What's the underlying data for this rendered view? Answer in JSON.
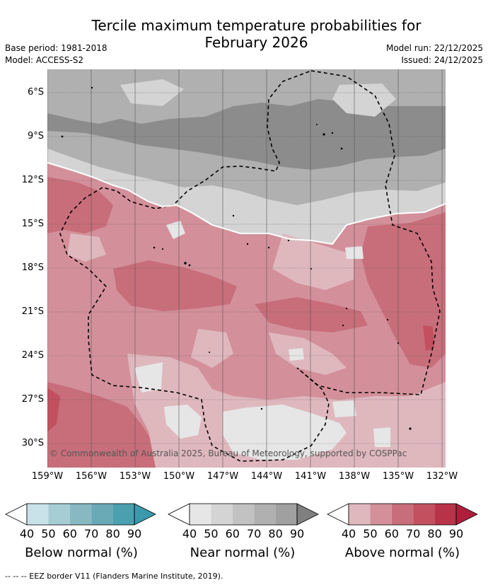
{
  "title": {
    "line1": "Tercile maximum temperature probabilities for",
    "line2": "February 2026"
  },
  "meta_left": {
    "base_period": "Base period: 1981-2018",
    "model": "Model: ACCESS-S2"
  },
  "meta_right": {
    "model_run": "Model run: 22/12/2025",
    "issued": "Issued: 24/12/2025"
  },
  "map": {
    "lat_labels": [
      "6°S",
      "9°S",
      "12°S",
      "15°S",
      "18°S",
      "21°S",
      "24°S",
      "27°S",
      "30°S"
    ],
    "lon_labels": [
      "159°W",
      "156°W",
      "153°W",
      "150°W",
      "147°W",
      "144°W",
      "141°W",
      "138°W",
      "135°W",
      "132°W"
    ],
    "copyright": "© Commonwealth of Australia 2025, Bureau of Meteorology, supported by COSPPac",
    "colors": {
      "near_50": "#d4d4d4",
      "near_60": "#b0b0b0",
      "near_70": "#8c8c8c",
      "near_40": "#e6e6e6",
      "above_40": "#dfb8be",
      "above_50": "#d3909a",
      "above_60": "#c76e7a",
      "above_70": "#c2505f"
    }
  },
  "legend": {
    "below": {
      "caption": "Below normal (%)",
      "ticks": [
        "40",
        "50",
        "60",
        "70",
        "80",
        "90"
      ],
      "colors": [
        "#c9e2e8",
        "#a7cdd4",
        "#88b9c2",
        "#6aaab6",
        "#4ba0b0"
      ]
    },
    "near": {
      "caption": "Near normal (%)",
      "ticks": [
        "40",
        "50",
        "60",
        "70",
        "80",
        "90"
      ],
      "colors": [
        "#e6e6e6",
        "#d4d4d4",
        "#c2c2c2",
        "#b0b0b0",
        "#a0a0a0"
      ]
    },
    "above": {
      "caption": "Above normal (%)",
      "ticks": [
        "40",
        "50",
        "60",
        "70",
        "80",
        "90"
      ],
      "colors": [
        "#dfb8be",
        "#d3909a",
        "#c76e7a",
        "#c2505f",
        "#b83348"
      ]
    }
  },
  "footnote": "-- -- -- EEZ border V11 (Flanders Marine Institute, 2019)."
}
